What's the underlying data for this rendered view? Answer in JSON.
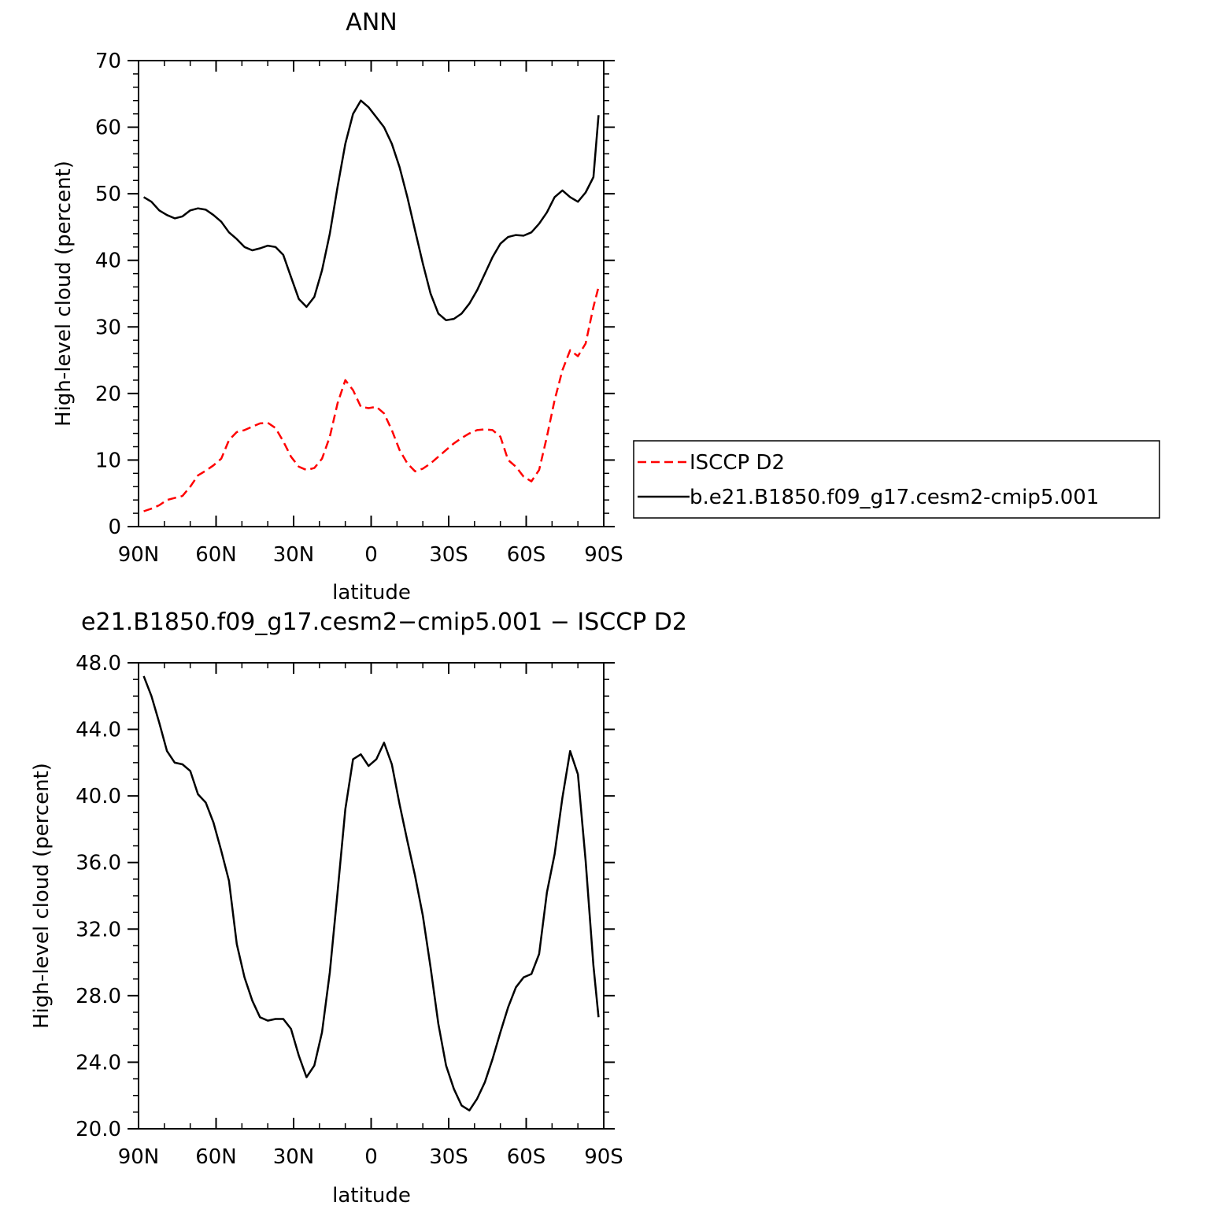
{
  "chart_data": [
    {
      "type": "line",
      "title": "ANN",
      "xlabel": "latitude",
      "ylabel": "High-level cloud (percent)",
      "xlim": [
        90,
        -90
      ],
      "ylim": [
        0,
        70
      ],
      "xticks": [
        90,
        60,
        30,
        0,
        -30,
        -60,
        -90
      ],
      "xtick_labels": [
        "90N",
        "60N",
        "30N",
        "0",
        "30S",
        "60S",
        "90S"
      ],
      "yticks": [
        0,
        10,
        20,
        30,
        40,
        50,
        60,
        70
      ],
      "ytick_labels": [
        "0",
        "10",
        "20",
        "30",
        "40",
        "50",
        "60",
        "70"
      ],
      "grid": false,
      "legend_position": "right",
      "series": [
        {
          "name": "ISCCP D2",
          "color": "#ff0000",
          "dash": "dashed",
          "x": [
            88,
            85,
            82,
            79,
            76,
            73,
            70,
            67,
            64,
            61,
            58,
            55,
            52,
            49,
            46,
            43,
            40,
            37,
            34,
            31,
            28,
            25,
            22,
            19,
            16,
            13,
            10,
            7,
            4,
            1,
            -2,
            -5,
            -8,
            -11,
            -14,
            -17,
            -20,
            -23,
            -26,
            -29,
            -32,
            -35,
            -38,
            -41,
            -44,
            -47,
            -50,
            -53,
            -56,
            -59,
            -62,
            -65,
            -68,
            -71,
            -74,
            -77,
            -80,
            -83,
            -86,
            -88
          ],
          "y": [
            2.3,
            2.7,
            3.2,
            4.0,
            4.3,
            4.6,
            6.0,
            7.7,
            8.4,
            9.2,
            10.2,
            13.0,
            14.2,
            14.5,
            15.0,
            15.5,
            15.6,
            14.8,
            12.8,
            10.5,
            9.0,
            8.5,
            8.8,
            10.2,
            13.5,
            18.5,
            22.0,
            20.5,
            18.0,
            17.8,
            18.0,
            17.0,
            14.5,
            11.5,
            9.5,
            8.3,
            8.7,
            9.5,
            10.5,
            11.5,
            12.5,
            13.3,
            14.0,
            14.5,
            14.6,
            14.5,
            13.5,
            10.0,
            9.0,
            7.5,
            6.8,
            8.5,
            13.5,
            19.0,
            23.5,
            26.5,
            25.6,
            27.5,
            33.0,
            36.0
          ]
        },
        {
          "name": "b.e21.B1850.f09_g17.cesm2-cmip5.001",
          "color": "#000000",
          "dash": "solid",
          "x": [
            88,
            85,
            82,
            79,
            76,
            73,
            70,
            67,
            64,
            61,
            58,
            55,
            52,
            49,
            46,
            43,
            40,
            37,
            34,
            31,
            28,
            25,
            22,
            19,
            16,
            13,
            10,
            7,
            4,
            1,
            -2,
            -5,
            -8,
            -11,
            -14,
            -17,
            -20,
            -23,
            -26,
            -29,
            -32,
            -35,
            -38,
            -41,
            -44,
            -47,
            -50,
            -53,
            -56,
            -59,
            -62,
            -65,
            -68,
            -71,
            -74,
            -77,
            -80,
            -83,
            -86,
            -88
          ],
          "y": [
            49.5,
            48.8,
            47.5,
            46.8,
            46.3,
            46.6,
            47.5,
            47.8,
            47.6,
            46.8,
            45.8,
            44.2,
            43.2,
            42.0,
            41.5,
            41.8,
            42.2,
            42.0,
            40.8,
            37.5,
            34.2,
            33.0,
            34.5,
            38.5,
            44.0,
            51.0,
            57.5,
            62.0,
            64.0,
            63.0,
            61.5,
            60.0,
            57.5,
            54.0,
            49.5,
            44.5,
            39.5,
            35.0,
            32.0,
            31.0,
            31.2,
            32.0,
            33.5,
            35.5,
            38.0,
            40.5,
            42.5,
            43.5,
            43.8,
            43.7,
            44.2,
            45.5,
            47.2,
            49.5,
            50.5,
            49.5,
            48.8,
            50.2,
            52.5,
            61.8
          ]
        }
      ]
    },
    {
      "type": "line",
      "title": "e21.B1850.f09_g17.cesm2−cmip5.001 − ISCCP D2",
      "xlabel": "latitude",
      "ylabel": "High-level cloud (percent)",
      "xlim": [
        90,
        -90
      ],
      "ylim": [
        20,
        48
      ],
      "xticks": [
        90,
        60,
        30,
        0,
        -30,
        -60,
        -90
      ],
      "xtick_labels": [
        "90N",
        "60N",
        "30N",
        "0",
        "30S",
        "60S",
        "90S"
      ],
      "yticks": [
        20,
        24,
        28,
        32,
        36,
        40,
        44,
        48
      ],
      "ytick_labels": [
        "20.0",
        "24.0",
        "28.0",
        "32.0",
        "36.0",
        "40.0",
        "44.0",
        "48.0"
      ],
      "grid": false,
      "series": [
        {
          "color": "#000000",
          "dash": "solid",
          "x": [
            88,
            85,
            82,
            79,
            76,
            73,
            70,
            67,
            64,
            61,
            58,
            55,
            52,
            49,
            46,
            43,
            40,
            37,
            34,
            31,
            28,
            25,
            22,
            19,
            16,
            13,
            10,
            7,
            4,
            1,
            -2,
            -5,
            -8,
            -11,
            -14,
            -17,
            -20,
            -23,
            -26,
            -29,
            -32,
            -35,
            -38,
            -41,
            -44,
            -47,
            -50,
            -53,
            -56,
            -59,
            -62,
            -65,
            -68,
            -71,
            -74,
            -77,
            -80,
            -83,
            -86,
            -88
          ],
          "y": [
            47.2,
            46.0,
            44.4,
            42.7,
            42.0,
            41.9,
            41.5,
            40.1,
            39.6,
            38.4,
            36.7,
            34.9,
            31.1,
            29.1,
            27.7,
            26.7,
            26.5,
            26.6,
            26.6,
            26.0,
            24.4,
            23.1,
            23.8,
            25.8,
            29.4,
            34.2,
            39.2,
            42.2,
            42.5,
            41.8,
            42.2,
            43.2,
            41.9,
            39.5,
            37.3,
            35.2,
            32.8,
            29.7,
            26.3,
            23.8,
            22.4,
            21.4,
            21.1,
            21.8,
            22.8,
            24.2,
            25.8,
            27.3,
            28.5,
            29.1,
            29.3,
            30.5,
            34.2,
            36.5,
            39.9,
            42.7,
            41.3,
            36.1,
            29.8,
            26.7
          ]
        }
      ]
    }
  ],
  "legend": {
    "entries": [
      "ISCCP D2",
      "b.e21.B1850.f09_g17.cesm2-cmip5.001"
    ]
  }
}
